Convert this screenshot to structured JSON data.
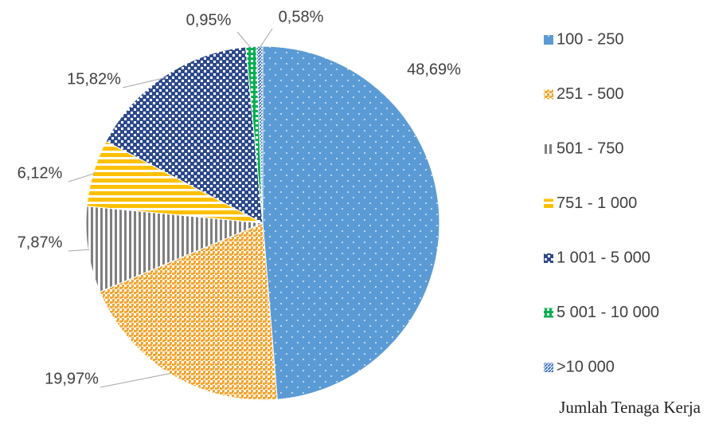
{
  "chart_data": {
    "type": "pie",
    "legend_title": "Jumlah Tenaga Kerja",
    "categories": [
      "100 - 250",
      "251 - 500",
      "501 - 750",
      "751 - 1 000",
      "1 001 - 5 000",
      "5 001 - 10 000",
      ">10 000"
    ],
    "values": [
      48.69,
      19.97,
      7.87,
      6.12,
      15.82,
      0.95,
      0.58
    ],
    "value_labels": [
      "48,69%",
      "19,97%",
      "7,87%",
      "6,12%",
      "15,82%",
      "0,95%",
      "0,58%"
    ],
    "colors": [
      "#5b9bd5",
      "#f4a530",
      "#7f7f7f",
      "#ffc000",
      "#2e4a8c",
      "#00b050",
      "#4472c4"
    ],
    "legend": "right"
  }
}
